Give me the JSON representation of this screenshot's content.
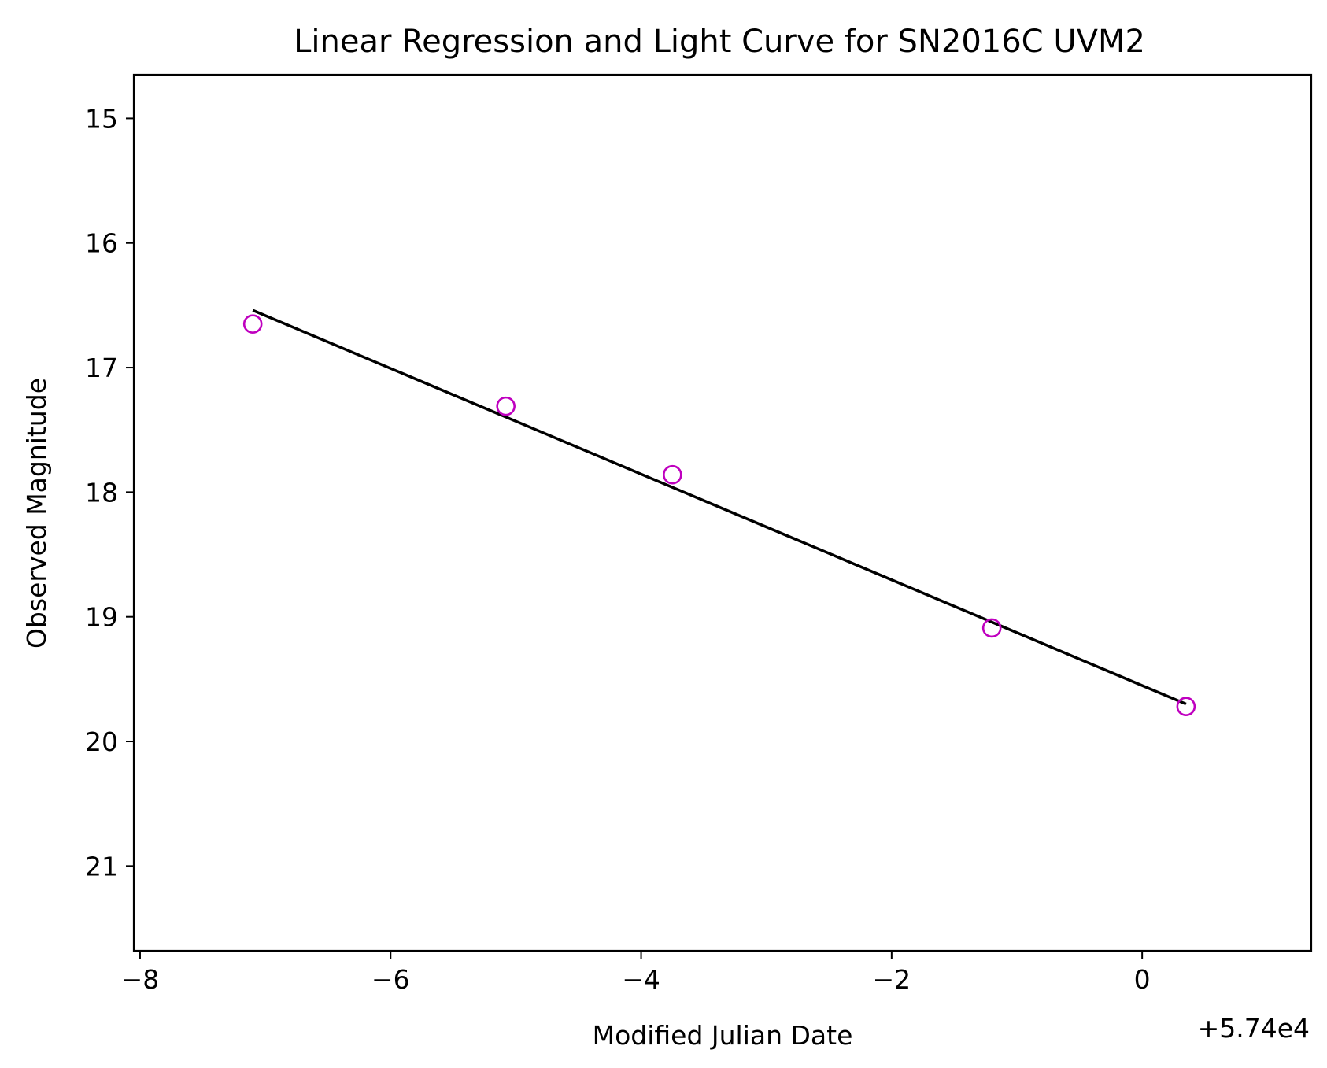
{
  "chart_data": {
    "type": "scatter",
    "title": "Linear Regression and Light Curve for SN2016C UVM2",
    "xlabel": "Modified Julian Date",
    "ylabel": "Observed Magnitude",
    "x_offset_label": "+5.74e4",
    "x_offset": 57400,
    "xlim": [
      -8.05,
      1.35
    ],
    "ylim": [
      21.68,
      14.65
    ],
    "y_inverted": true,
    "xticks": [
      -8,
      -6,
      -4,
      -2,
      0
    ],
    "xtick_labels": [
      "−8",
      "−6",
      "−4",
      "−2",
      "0"
    ],
    "yticks": [
      15,
      16,
      17,
      18,
      19,
      20,
      21
    ],
    "ytick_labels": [
      "15",
      "16",
      "17",
      "18",
      "19",
      "20",
      "21"
    ],
    "grid": false,
    "legend": false,
    "series": [
      {
        "kind": "scatter",
        "marker": "open-circle",
        "color": "#bf00bf",
        "x": [
          -7.1,
          -5.08,
          -3.75,
          -1.2,
          0.35
        ],
        "y": [
          16.65,
          17.31,
          17.86,
          19.09,
          19.72
        ]
      },
      {
        "kind": "line",
        "color": "#000000",
        "x": [
          -7.1,
          0.35
        ],
        "y": [
          16.54,
          19.7
        ]
      }
    ]
  }
}
